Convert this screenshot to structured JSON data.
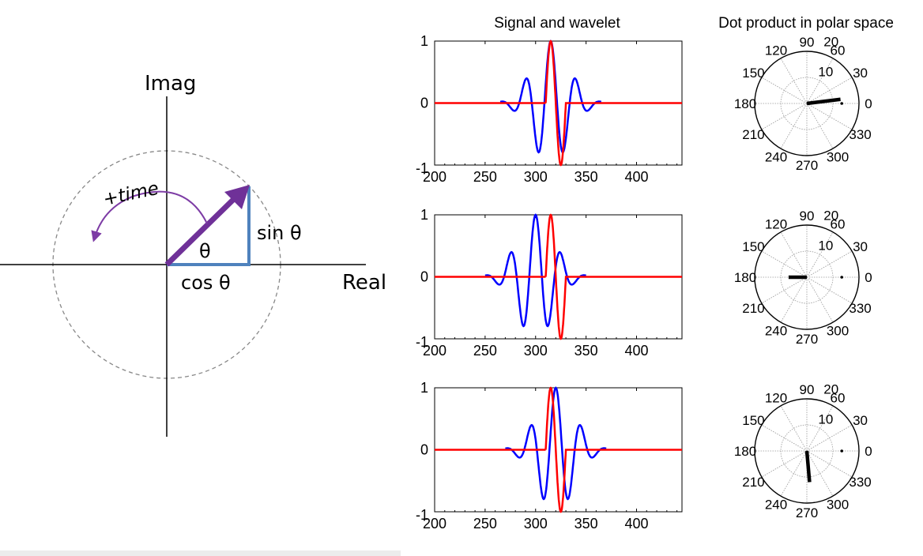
{
  "unit_circle": {
    "imag_label": "Imag",
    "real_label": "Real",
    "time_label": "+time",
    "theta_label": "θ",
    "sin_label": "sin θ",
    "cos_label": "cos θ",
    "colors": {
      "vector": "#6f3198",
      "legs": "#4f82bd",
      "circle": "#888888",
      "time_arrow": "#7d3ca5"
    }
  },
  "signal_panel_title": "Signal and wavelet",
  "polar_panel_title": "Dot product in polar space",
  "signal_axes": {
    "xticks": [
      "200",
      "250",
      "300",
      "350",
      "400"
    ],
    "yticks": [
      "1",
      "0",
      "-1"
    ],
    "xlim": [
      200,
      445
    ],
    "ylim": [
      -1,
      1
    ]
  },
  "polar_axes": {
    "angle_labels": [
      "0",
      "30",
      "60",
      "90",
      "120",
      "150",
      "180",
      "210",
      "240",
      "270",
      "300",
      "330"
    ],
    "radius_labels": [
      "10",
      "20"
    ],
    "rmax": 20
  },
  "chart_data": [
    {
      "type": "line",
      "title": "Signal and wavelet",
      "row": 1,
      "series": [
        {
          "color": "#0000ff",
          "kind": "wavelet",
          "center": 315,
          "phase_deg": 0,
          "sigma": 18,
          "period": 25
        },
        {
          "color": "#ff0000",
          "kind": "signal",
          "cycle_start": 310,
          "cycle_end": 330,
          "values": "one cycle of sine-like pulse, 0 elsewhere"
        }
      ],
      "xlim": [
        200,
        445
      ],
      "ylim": [
        -1,
        1
      ]
    },
    {
      "type": "polar",
      "title": "Dot product in polar space",
      "row": 1,
      "vector": {
        "angle_deg": 7,
        "radius": 13
      }
    },
    {
      "type": "line",
      "row": 2,
      "series": [
        {
          "color": "#0000ff",
          "kind": "wavelet",
          "center": 300,
          "phase_deg": 0,
          "sigma": 18,
          "period": 25
        },
        {
          "color": "#ff0000",
          "kind": "signal",
          "cycle_start": 310,
          "cycle_end": 330
        }
      ],
      "xlim": [
        200,
        445
      ],
      "ylim": [
        -1,
        1
      ]
    },
    {
      "type": "polar",
      "row": 2,
      "vector": {
        "angle_deg": 180,
        "radius": 7
      }
    },
    {
      "type": "line",
      "row": 3,
      "series": [
        {
          "color": "#0000ff",
          "kind": "wavelet",
          "center": 320,
          "phase_deg": 0,
          "sigma": 18,
          "period": 25
        },
        {
          "color": "#ff0000",
          "kind": "signal",
          "cycle_start": 310,
          "cycle_end": 330
        }
      ],
      "xlim": [
        200,
        445
      ],
      "ylim": [
        -1,
        1
      ]
    },
    {
      "type": "polar",
      "row": 3,
      "vector": {
        "angle_deg": 275,
        "radius": 12
      }
    }
  ]
}
